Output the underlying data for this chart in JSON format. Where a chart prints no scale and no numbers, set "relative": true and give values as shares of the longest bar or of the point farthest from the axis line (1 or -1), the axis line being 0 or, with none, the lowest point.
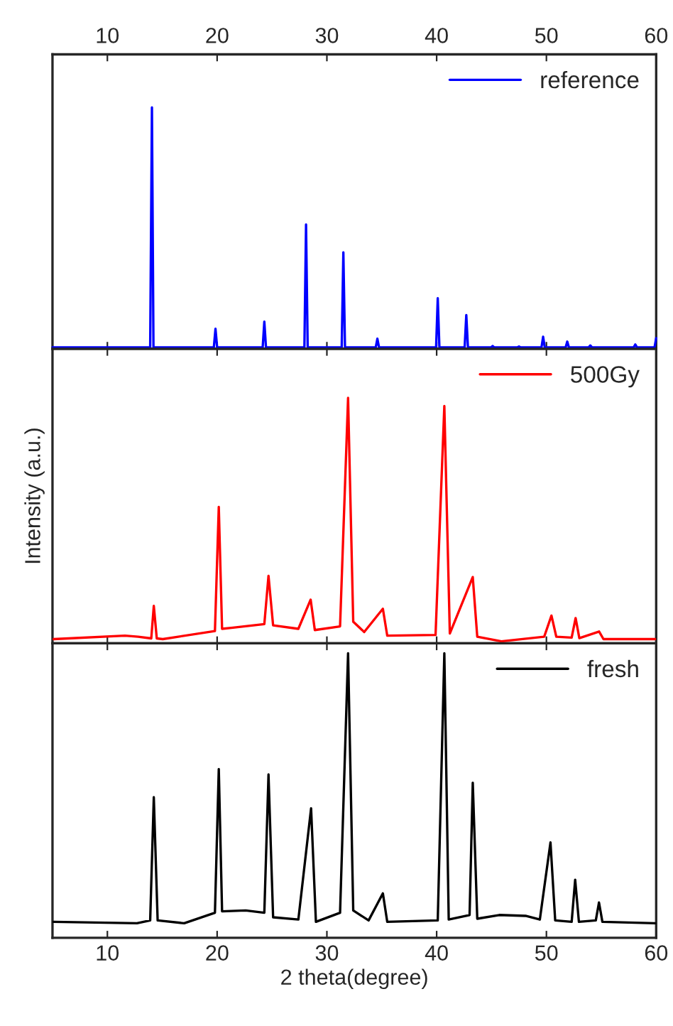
{
  "chart_data": [
    {
      "type": "line",
      "relative": true,
      "legend": "top right",
      "tick_labels": "x",
      "xlim": [
        5,
        60
      ],
      "xticks": [
        10,
        20,
        30,
        40,
        50,
        60
      ],
      "series": [
        {
          "name": "reference",
          "color": "#0000ff",
          "x": [
            5,
            13.9,
            14.06,
            14.2,
            19.7,
            19.85,
            20.0,
            24.15,
            24.3,
            24.45,
            27.95,
            28.1,
            28.25,
            31.35,
            31.5,
            31.65,
            34.45,
            34.6,
            34.75,
            39.95,
            40.1,
            40.25,
            42.55,
            42.7,
            42.85,
            44.95,
            45.1,
            45.25,
            47.35,
            47.5,
            47.65,
            49.55,
            49.7,
            49.85,
            51.75,
            51.9,
            52.05,
            53.85,
            54.0,
            54.15,
            57.95,
            58.1,
            58.25,
            59.85,
            60
          ],
          "values": [
            0.006,
            0.006,
            1.0,
            0.006,
            0.006,
            0.083,
            0.006,
            0.006,
            0.113,
            0.006,
            0.006,
            0.515,
            0.006,
            0.006,
            0.4,
            0.006,
            0.006,
            0.042,
            0.006,
            0.006,
            0.21,
            0.006,
            0.006,
            0.14,
            0.006,
            0.006,
            0.012,
            0.006,
            0.006,
            0.01,
            0.006,
            0.006,
            0.05,
            0.006,
            0.006,
            0.03,
            0.006,
            0.006,
            0.014,
            0.006,
            0.006,
            0.018,
            0.006,
            0.006,
            0.044
          ]
        }
      ]
    },
    {
      "type": "line",
      "relative": true,
      "legend": "top right",
      "tick_labels": false,
      "xlim": [
        5,
        60
      ],
      "xticks": [
        10,
        20,
        30,
        40,
        50,
        60
      ],
      "ylabel": "Intensity (a.u.)",
      "series": [
        {
          "name": "500Gy",
          "color": "#ff0000",
          "x": [
            5.1,
            11.6,
            12.8,
            14.0,
            14.23,
            14.5,
            15.05,
            19.8,
            20.15,
            20.45,
            21.3,
            24.3,
            24.68,
            25.1,
            27.4,
            28.52,
            28.9,
            31.2,
            31.93,
            32.4,
            33.4,
            35.1,
            35.5,
            39.9,
            40.7,
            41.2,
            43.29,
            43.7,
            45.9,
            49.8,
            50.46,
            50.9,
            52.3,
            52.66,
            53.0,
            54.8,
            55.2,
            59.9
          ],
          "values": [
            0.017,
            0.031,
            0.027,
            0.02,
            0.153,
            0.02,
            0.017,
            0.05,
            0.556,
            0.059,
            0.063,
            0.078,
            0.275,
            0.073,
            0.059,
            0.178,
            0.054,
            0.069,
            1.0,
            0.088,
            0.046,
            0.141,
            0.031,
            0.034,
            0.967,
            0.04,
            0.27,
            0.027,
            0.008,
            0.027,
            0.113,
            0.027,
            0.023,
            0.103,
            0.021,
            0.048,
            0.017,
            0.017
          ]
        }
      ]
    },
    {
      "type": "line",
      "relative": true,
      "legend": "top right",
      "tick_labels": "x",
      "xlim": [
        5,
        60
      ],
      "xticks": [
        10,
        20,
        30,
        40,
        50,
        60
      ],
      "xlabel": "2 theta(degree)",
      "series": [
        {
          "name": "fresh",
          "color": "#000000",
          "x": [
            5.1,
            12.7,
            13.9,
            14.23,
            14.58,
            17.0,
            19.8,
            20.15,
            20.45,
            22.6,
            24.3,
            24.68,
            25.1,
            27.4,
            28.56,
            29.0,
            31.2,
            31.93,
            32.4,
            33.8,
            35.1,
            35.5,
            40.1,
            40.7,
            41.1,
            43.0,
            43.29,
            43.7,
            45.7,
            48.1,
            49.4,
            50.37,
            50.8,
            52.3,
            52.62,
            52.96,
            54.5,
            54.79,
            55.1,
            59.9
          ],
          "values": [
            0.056,
            0.051,
            0.061,
            0.494,
            0.061,
            0.051,
            0.088,
            0.593,
            0.093,
            0.096,
            0.088,
            0.574,
            0.072,
            0.064,
            0.455,
            0.056,
            0.088,
            1.0,
            0.096,
            0.061,
            0.156,
            0.056,
            0.061,
            1.0,
            0.064,
            0.08,
            0.545,
            0.067,
            0.08,
            0.077,
            0.064,
            0.335,
            0.061,
            0.056,
            0.204,
            0.056,
            0.061,
            0.124,
            0.056,
            0.051
          ]
        }
      ]
    }
  ]
}
